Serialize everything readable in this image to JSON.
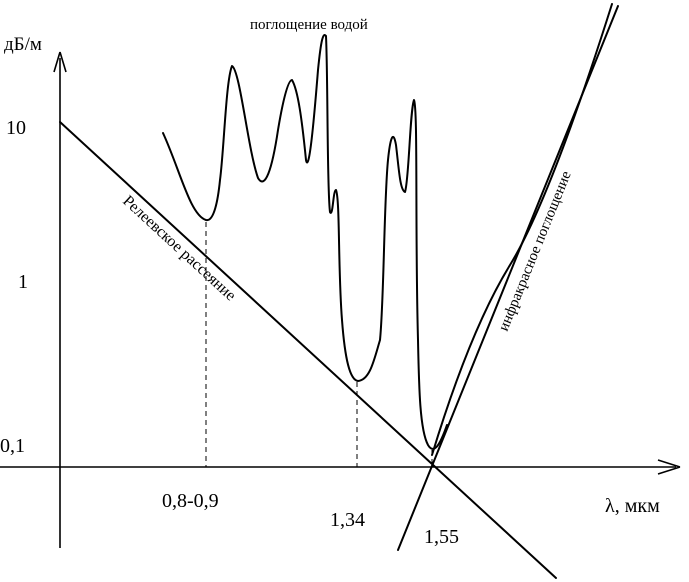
{
  "y_axis": {
    "unit": "дБ/м",
    "ticks": [
      "10",
      "1",
      "0,1"
    ]
  },
  "x_axis": {
    "unit": "λ, мкм",
    "ticks": [
      "0,8-0,9",
      "1,34",
      "1,55"
    ]
  },
  "annotations": {
    "water": "поглощение водой",
    "rayleigh": "Релеевское рассеяние",
    "infrared": "инфракрасное поглощение"
  }
}
